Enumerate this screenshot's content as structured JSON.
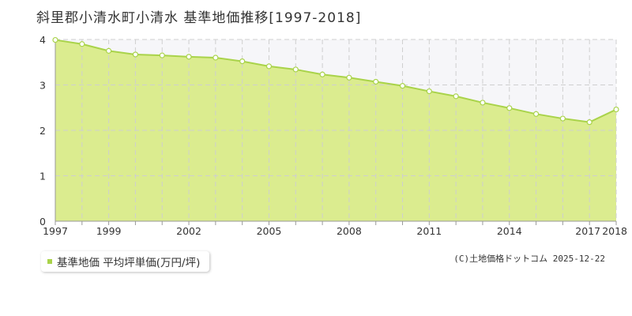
{
  "title": "斜里郡小清水町小清水 基準地価推移[1997-2018]",
  "legend": {
    "label": "基準地価 平均坪単価(万円/坪)"
  },
  "copyright": "(C)土地価格ドットコム 2025-12-22",
  "colors": {
    "fill": "#dbec8f",
    "line": "#a9d34a",
    "legend_swatch": "#a9d34a",
    "grid": "#cfcfcf",
    "plot_bg": "#f6f6f9",
    "point_fill": "#ffffff"
  },
  "chart_data": {
    "type": "area",
    "x": [
      1997,
      1998,
      1999,
      2000,
      2001,
      2002,
      2003,
      2004,
      2005,
      2006,
      2007,
      2008,
      2009,
      2010,
      2011,
      2012,
      2013,
      2014,
      2015,
      2016,
      2017,
      2018
    ],
    "series": [
      {
        "name": "基準地価 平均坪単価(万円/坪)",
        "values": [
          3.99,
          3.9,
          3.75,
          3.67,
          3.65,
          3.62,
          3.6,
          3.52,
          3.41,
          3.34,
          3.23,
          3.16,
          3.07,
          2.98,
          2.86,
          2.75,
          2.61,
          2.49,
          2.36,
          2.26,
          2.18,
          2.46
        ]
      }
    ],
    "x_tick_labels": [
      "1997",
      "1999",
      "2002",
      "2005",
      "2008",
      "2011",
      "2014",
      "2017",
      "2018"
    ],
    "y_ticks": [
      0,
      1,
      2,
      3,
      4
    ],
    "xlim": [
      1997,
      2018
    ],
    "ylim": [
      0,
      4
    ],
    "grid": true,
    "legend_position": "bottom-left",
    "title": "斜里郡小清水町小清水 基準地価推移[1997-2018]"
  }
}
